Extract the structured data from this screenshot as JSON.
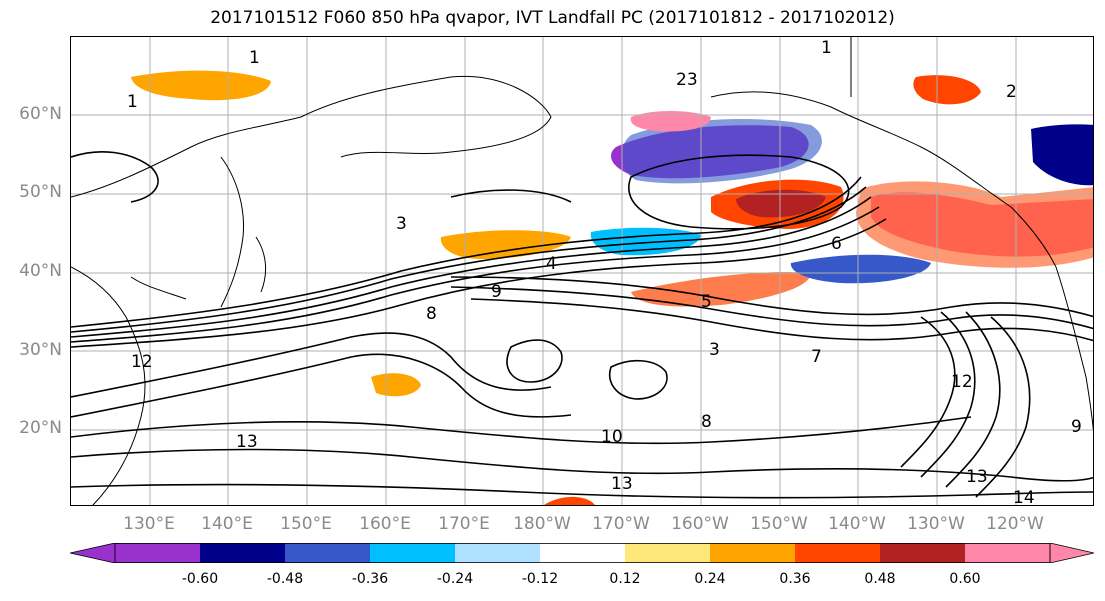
{
  "title": "2017101512 F060 850 hPa qvapor, IVT Landfall PC (2017101812 - 2017102012)",
  "lat_labels": [
    "60°N",
    "50°N",
    "40°N",
    "30°N",
    "20°N"
  ],
  "lon_labels": [
    "130°E",
    "140°E",
    "150°E",
    "160°E",
    "170°E",
    "180°W",
    "170°W",
    "160°W",
    "150°W",
    "140°W",
    "130°W",
    "120°W"
  ],
  "colorbar": {
    "colors": [
      "#9932cc",
      "#00008b",
      "#3658c8",
      "#00bfff",
      "#b0e0ff",
      "#ffffff",
      "#ffe87a",
      "#ffa500",
      "#ff4500",
      "#b22222",
      "#ff88aa"
    ],
    "tick_labels": [
      "-0.60",
      "-0.48",
      "-0.36",
      "-0.24",
      "-0.12",
      "0.12",
      "0.24",
      "0.36",
      "0.48",
      "0.60"
    ]
  },
  "contour_labels": [
    "1",
    "1",
    "1",
    "2",
    "3",
    "3",
    "4",
    "5",
    "6",
    "7",
    "8",
    "8",
    "9",
    "9",
    "10",
    "12",
    "12",
    "13",
    "13",
    "13",
    "14",
    "23"
  ]
}
